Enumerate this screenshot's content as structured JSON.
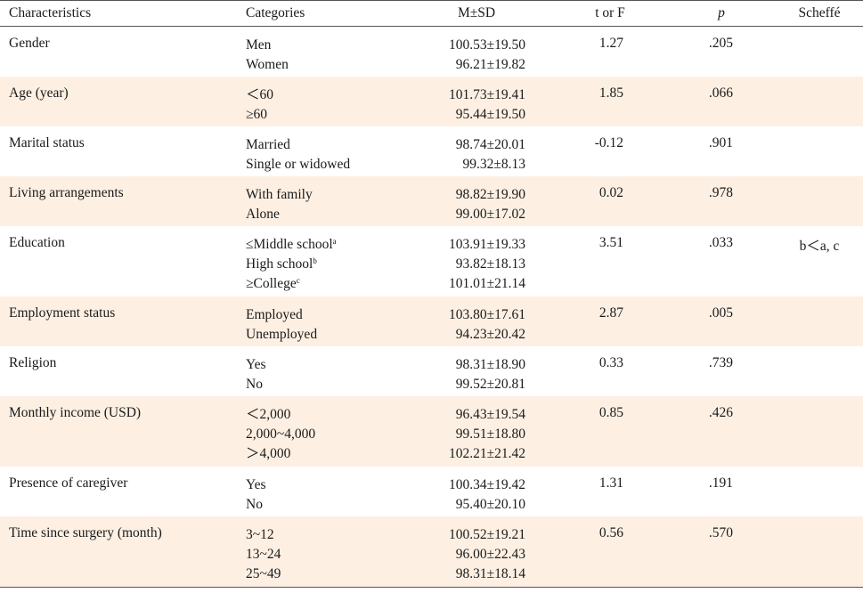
{
  "header": {
    "characteristics": "Characteristics",
    "categories": "Categories",
    "msd": "M±SD",
    "t_or_f": "t or F",
    "p": "p",
    "scheffe": "Scheffé"
  },
  "rows": [
    {
      "characteristic": "Gender",
      "categories": [
        "Men",
        "Women"
      ],
      "msd": [
        "100.53±19.50",
        "96.21±19.82"
      ],
      "t_or_f": "1.27",
      "p": ".205",
      "scheffe": ""
    },
    {
      "characteristic": "Age (year)",
      "categories": [
        "＜60",
        "≥60"
      ],
      "msd": [
        "101.73±19.41",
        "95.44±19.50"
      ],
      "t_or_f": "1.85",
      "p": ".066",
      "scheffe": ""
    },
    {
      "characteristic": "Marital status",
      "categories": [
        "Married",
        "Single or widowed"
      ],
      "msd": [
        "98.74±20.01",
        "99.32±8.13"
      ],
      "t_or_f": "-0.12",
      "p": ".901",
      "scheffe": ""
    },
    {
      "characteristic": "Living arrangements",
      "categories": [
        "With family",
        "Alone"
      ],
      "msd": [
        "98.82±19.90",
        "99.00±17.02"
      ],
      "t_or_f": "0.02",
      "p": ".978",
      "scheffe": ""
    },
    {
      "characteristic": "Education",
      "categories": [
        "≤Middle school",
        "High school",
        "≥College"
      ],
      "category_sups": [
        "a",
        "b",
        "c"
      ],
      "msd": [
        "103.91±19.33",
        "93.82±18.13",
        "101.01±21.14"
      ],
      "t_or_f": "3.51",
      "p": ".033",
      "scheffe": "b＜a, c"
    },
    {
      "characteristic": "Employment status",
      "categories": [
        "Employed",
        "Unemployed"
      ],
      "msd": [
        "103.80±17.61",
        "94.23±20.42"
      ],
      "t_or_f": "2.87",
      "p": ".005",
      "scheffe": ""
    },
    {
      "characteristic": "Religion",
      "categories": [
        "Yes",
        "No"
      ],
      "msd": [
        "98.31±18.90",
        "99.52±20.81"
      ],
      "t_or_f": "0.33",
      "p": ".739",
      "scheffe": ""
    },
    {
      "characteristic": "Monthly income (USD)",
      "categories": [
        "＜2,000",
        "2,000~4,000",
        "＞4,000"
      ],
      "msd": [
        "96.43±19.54",
        "99.51±18.80",
        "102.21±21.42"
      ],
      "t_or_f": "0.85",
      "p": ".426",
      "scheffe": ""
    },
    {
      "characteristic": "Presence of caregiver",
      "categories": [
        "Yes",
        "No"
      ],
      "msd": [
        "100.34±19.42",
        "95.40±20.10"
      ],
      "t_or_f": "1.31",
      "p": ".191",
      "scheffe": ""
    },
    {
      "characteristic": "Time since surgery (month)",
      "categories": [
        "3~12",
        "13~24",
        "25~49"
      ],
      "msd": [
        "100.52±19.21",
        "96.00±22.43",
        "98.31±18.14"
      ],
      "t_or_f": "0.56",
      "p": ".570",
      "scheffe": ""
    }
  ],
  "colors": {
    "shade": "#fdf0e3",
    "rule": "#555555"
  }
}
